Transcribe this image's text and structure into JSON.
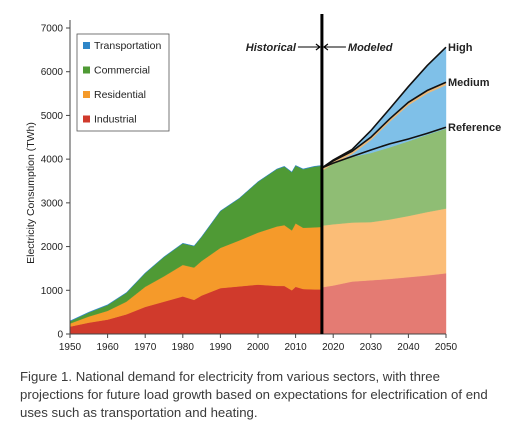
{
  "chart_data": {
    "type": "area",
    "stacked": true,
    "title": "",
    "ylabel": "Electricity Consumption (TWh)",
    "xlabel": "",
    "xlim": [
      1950,
      2050
    ],
    "ylim": [
      0,
      7000
    ],
    "x_ticks": [
      "1950",
      "1960",
      "1970",
      "1980",
      "1990",
      "2000",
      "2010",
      "2020",
      "2030",
      "2040",
      "2050"
    ],
    "y_ticks": [
      "0",
      "1000",
      "2000",
      "3000",
      "4000",
      "5000",
      "6000",
      "7000"
    ],
    "legend_position": "top-left",
    "divider_year": 2017,
    "annotation_left": "Historical",
    "annotation_right": "Modeled",
    "historical": {
      "x": [
        1950,
        1955,
        1960,
        1965,
        1970,
        1975,
        1980,
        1983,
        1985,
        1990,
        1995,
        2000,
        2005,
        2007,
        2009,
        2010,
        2012,
        2015,
        2017
      ],
      "series": [
        {
          "name": "Industrial",
          "values": [
            170,
            260,
            330,
            450,
            620,
            740,
            860,
            780,
            880,
            1050,
            1090,
            1130,
            1100,
            1100,
            1000,
            1080,
            1030,
            1020,
            1020
          ]
        },
        {
          "name": "Residential",
          "values": [
            70,
            140,
            200,
            290,
            460,
            580,
            720,
            740,
            790,
            920,
            1050,
            1190,
            1360,
            1390,
            1370,
            1450,
            1400,
            1420,
            1430
          ]
        },
        {
          "name": "Commercial",
          "values": [
            50,
            90,
            130,
            200,
            310,
            440,
            490,
            490,
            550,
            840,
            960,
            1160,
            1310,
            1340,
            1330,
            1320,
            1340,
            1390,
            1400
          ]
        },
        {
          "name": "Transportation",
          "values": [
            10,
            10,
            10,
            8,
            8,
            7,
            7,
            6,
            6,
            6,
            5,
            5,
            5,
            7,
            7,
            7,
            7,
            7,
            7
          ]
        }
      ]
    },
    "modeled": {
      "x": [
        2017,
        2020,
        2025,
        2030,
        2035,
        2040,
        2045,
        2050
      ],
      "series": [
        {
          "name": "Industrial",
          "values": [
            1070,
            1110,
            1200,
            1230,
            1260,
            1300,
            1340,
            1390
          ]
        },
        {
          "name": "Residential",
          "values": [
            1410,
            1400,
            1350,
            1330,
            1360,
            1400,
            1450,
            1480
          ]
        },
        {
          "name": "Commercial",
          "values": [
            1300,
            1400,
            1500,
            1580,
            1650,
            1710,
            1770,
            1830
          ]
        },
        {
          "name": "Transportation",
          "values": [
            20,
            70,
            170,
            350,
            620,
            930,
            1300,
            1800
          ]
        }
      ],
      "scenario_lines": [
        {
          "name": "High",
          "values": [
            3800,
            3980,
            4220,
            4650,
            5150,
            5660,
            6140,
            6560
          ]
        },
        {
          "name": "Medium",
          "values": [
            3800,
            3960,
            4180,
            4500,
            4920,
            5300,
            5570,
            5760
          ]
        },
        {
          "name": "Reference",
          "values": [
            3800,
            3910,
            4060,
            4210,
            4350,
            4460,
            4590,
            4730
          ]
        }
      ]
    }
  },
  "legend": {
    "items": [
      {
        "label": "Transportation",
        "color": "#2e86c8"
      },
      {
        "label": "Commercial",
        "color": "#4f9a35"
      },
      {
        "label": "Residential",
        "color": "#f59a2a"
      },
      {
        "label": "Industrial",
        "color": "#d03a2c"
      }
    ]
  },
  "colors": {
    "historical": {
      "Industrial": "#d03a2c",
      "Residential": "#f59a2a",
      "Commercial": "#4f9a35",
      "Transportation": "#2e86c8"
    },
    "modeled": {
      "Industrial": "#e47b73",
      "Residential": "#fbbd77",
      "Commercial": "#8fbd74",
      "Transportation": "#7fc0e8"
    }
  },
  "caption": "Figure 1. National demand for electricity from various sectors, with three projections for future load growth based on expectations for electrification of end uses such as transportation and heating."
}
